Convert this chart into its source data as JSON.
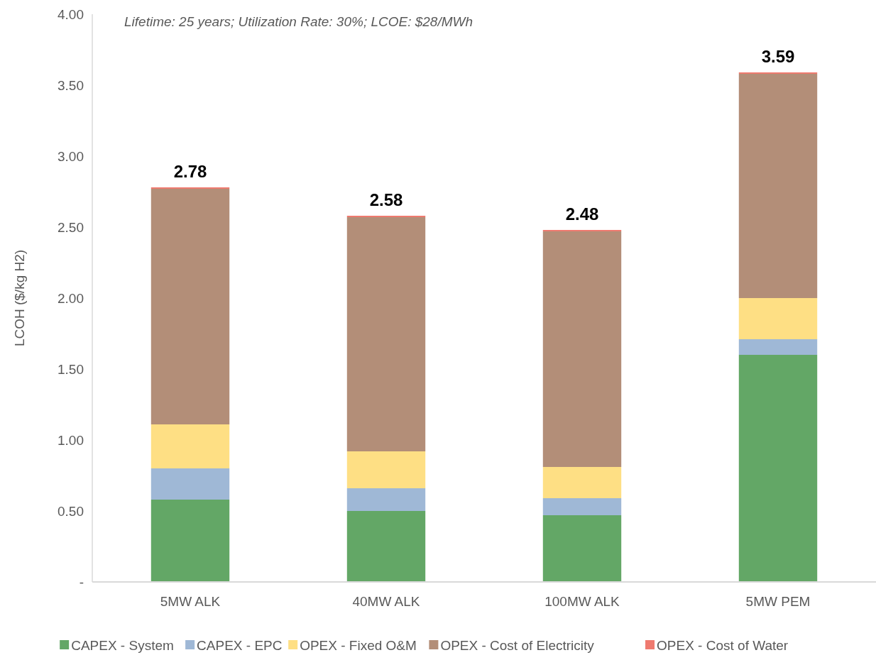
{
  "chart_data": {
    "type": "bar",
    "stacked": true,
    "ylabel": "LCOH ($/kg H2)",
    "annotations": [
      "Lifetime: 25 years; Utilization Rate: 30%; LCOE: $28/MWh"
    ],
    "categories": [
      "5MW ALK",
      "40MW ALK",
      "100MW ALK",
      "5MW PEM"
    ],
    "series": [
      {
        "name": "CAPEX - System",
        "color": "#63a766",
        "values": [
          0.58,
          0.5,
          0.47,
          1.6
        ]
      },
      {
        "name": "CAPEX - EPC",
        "color": "#9fb8d6",
        "values": [
          0.22,
          0.16,
          0.12,
          0.11
        ]
      },
      {
        "name": "OPEX - Fixed O&M",
        "color": "#fedf84",
        "values": [
          0.31,
          0.26,
          0.22,
          0.29
        ]
      },
      {
        "name": "OPEX - Cost of Electricity",
        "color": "#b38e78",
        "values": [
          1.66,
          1.65,
          1.66,
          1.58
        ]
      },
      {
        "name": "OPEX - Cost of Water",
        "color": "#ef7a6f",
        "values": [
          0.01,
          0.01,
          0.01,
          0.01
        ]
      }
    ],
    "totals": [
      "2.78",
      "2.58",
      "2.48",
      "3.59"
    ],
    "ylim": [
      0,
      4
    ],
    "yticks": [
      {
        "value": 0,
        "label": "-"
      },
      {
        "value": 0.5,
        "label": "0.50"
      },
      {
        "value": 1,
        "label": "1.00"
      },
      {
        "value": 1.5,
        "label": "1.50"
      },
      {
        "value": 2,
        "label": "2.00"
      },
      {
        "value": 2.5,
        "label": "2.50"
      },
      {
        "value": 3,
        "label": "3.00"
      },
      {
        "value": 3.5,
        "label": "3.50"
      },
      {
        "value": 4,
        "label": "4.00"
      }
    ],
    "grid": false,
    "legend": "bottom"
  }
}
